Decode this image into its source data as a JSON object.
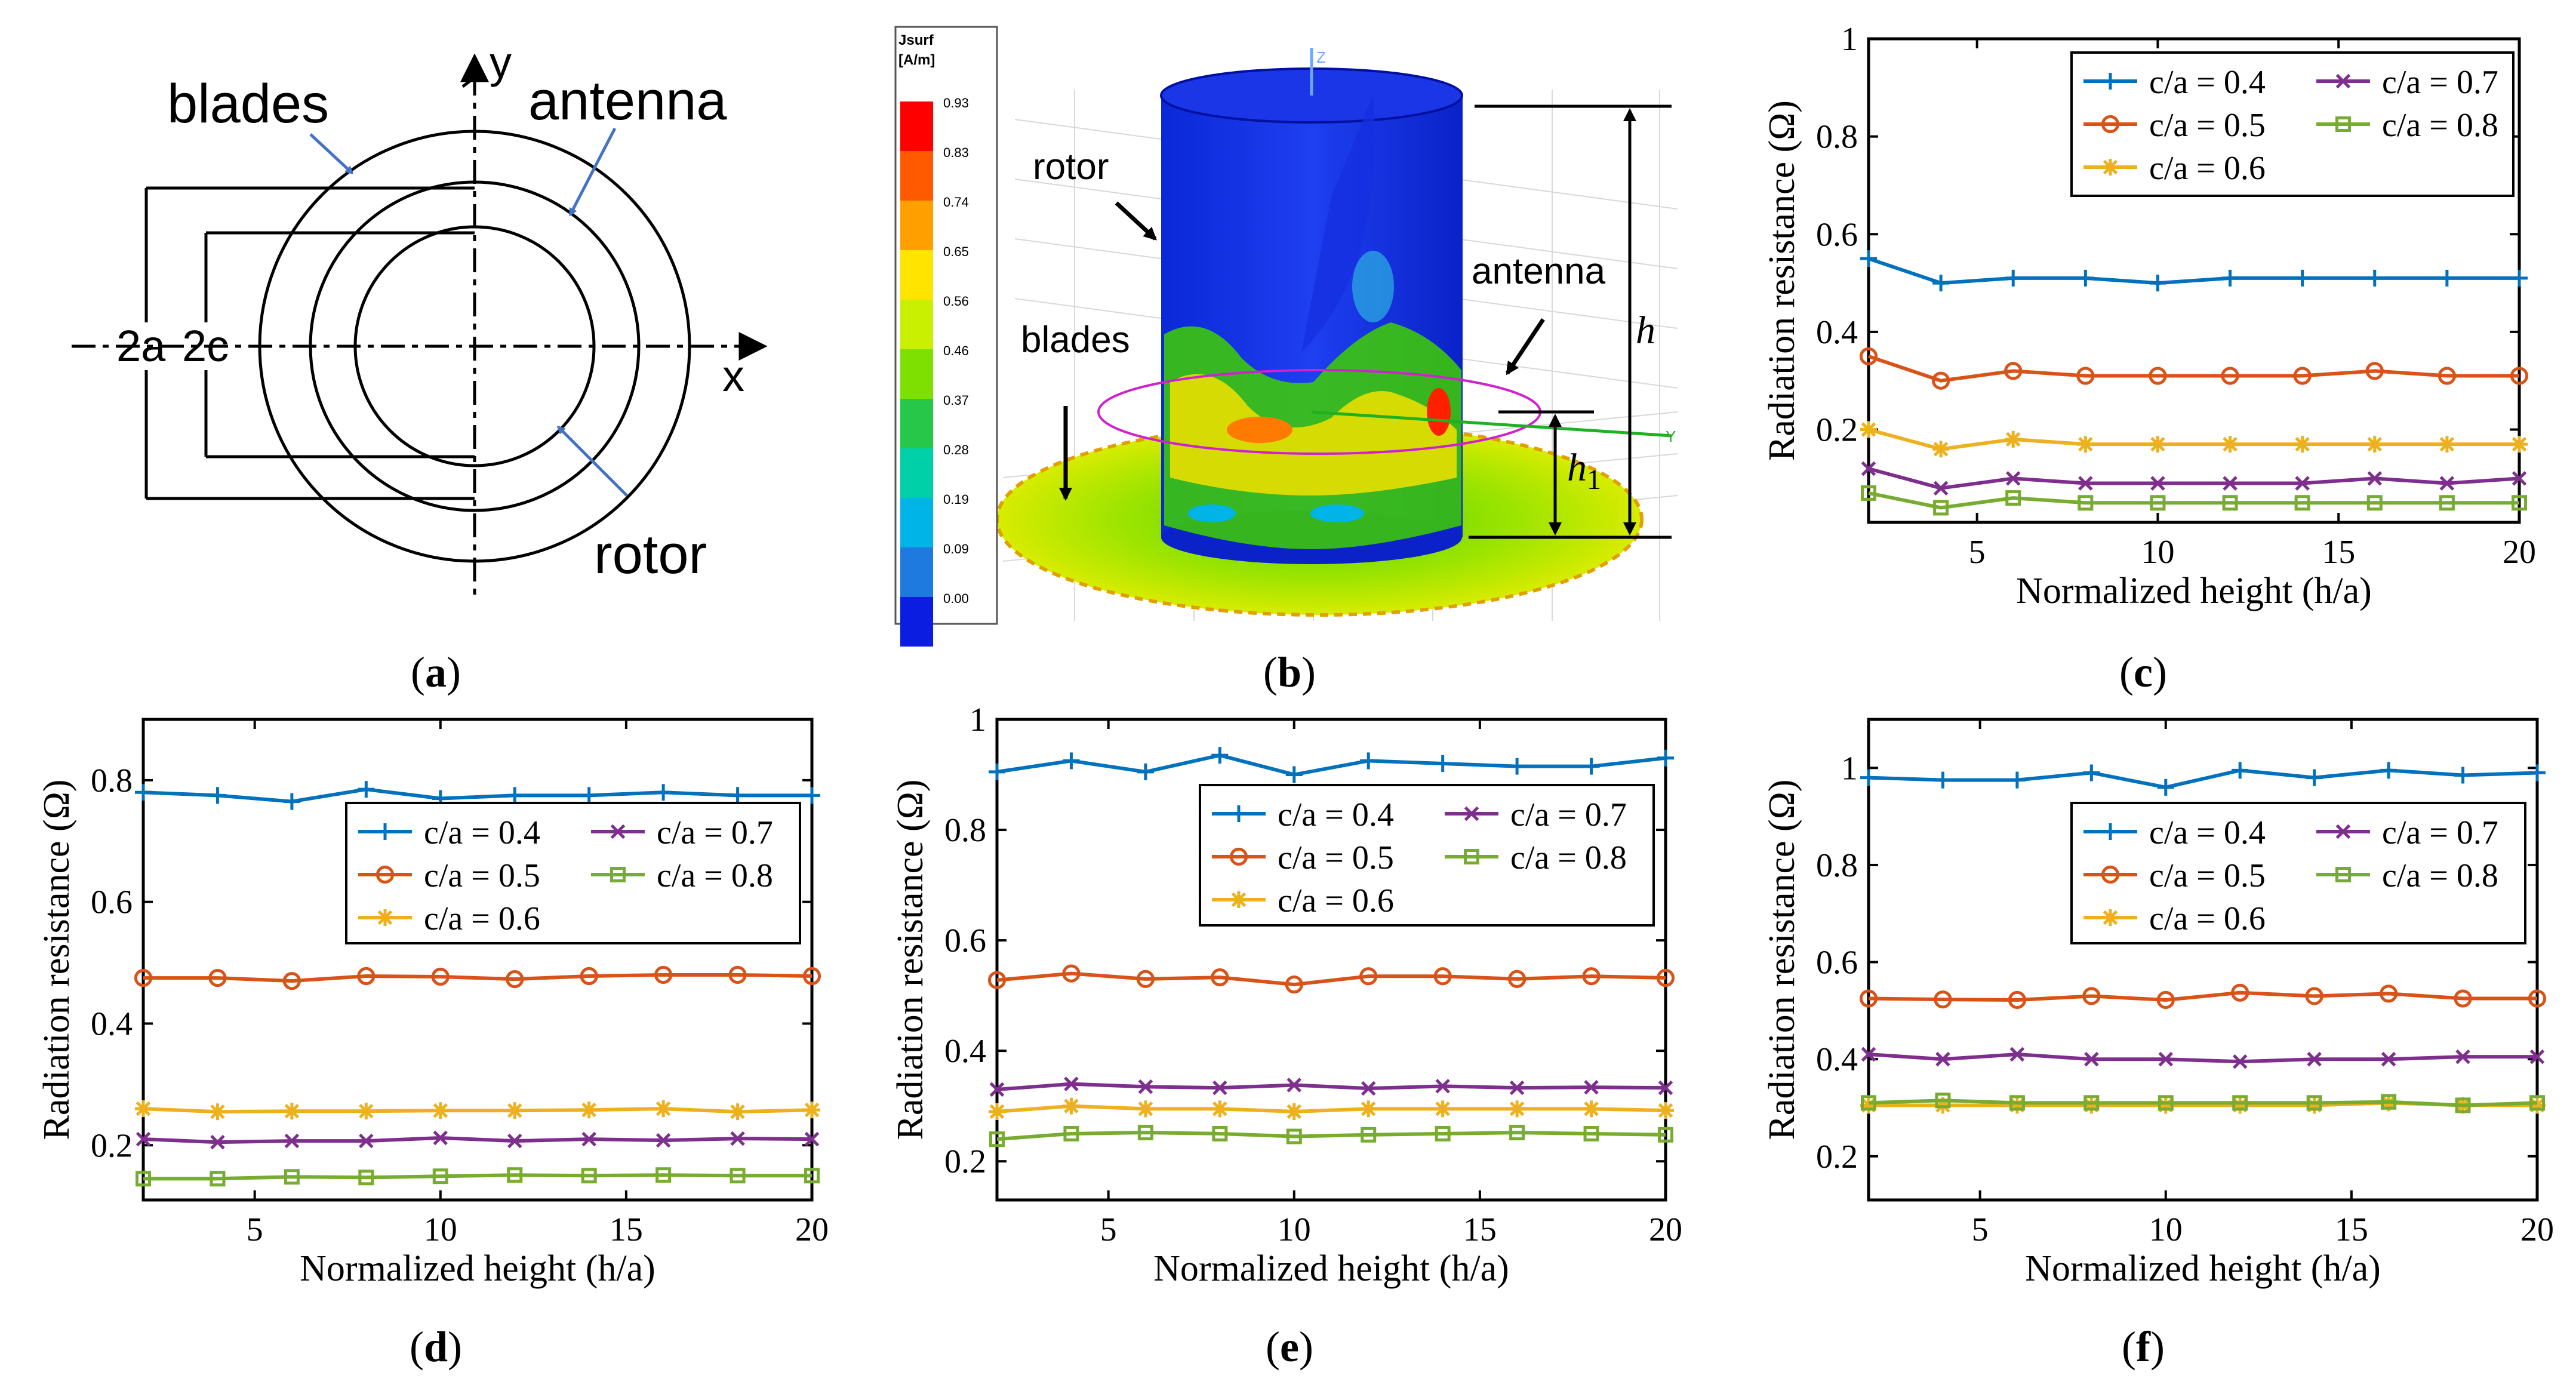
{
  "panel_labels": {
    "a": {
      "open": "(",
      "letter": "a",
      "close": ")"
    },
    "b": {
      "open": "(",
      "letter": "b",
      "close": ")"
    },
    "c": {
      "open": "(",
      "letter": "c",
      "close": ")"
    },
    "d": {
      "open": "(",
      "letter": "d",
      "close": ")"
    },
    "e": {
      "open": "(",
      "letter": "e",
      "close": ")"
    },
    "f": {
      "open": "(",
      "letter": "f",
      "close": ")"
    }
  },
  "diagram_a": {
    "blades": "blades",
    "antenna": "antenna",
    "rotor": "rotor",
    "dim_2a": "2a",
    "dim_2c": "2c",
    "axis_x": "x",
    "axis_y": "y"
  },
  "diagram_b": {
    "legend_title": "Jsurf",
    "legend_unit": "[A/m]",
    "legend_values": [
      "0.93",
      "0.83",
      "0.74",
      "0.65",
      "0.56",
      "0.46",
      "0.37",
      "0.28",
      "0.19",
      "0.09",
      "0.00"
    ],
    "legend_colors": [
      "#ff0000",
      "#ff5a00",
      "#ff9f00",
      "#ffe400",
      "#c8f000",
      "#7ee000",
      "#27c84a",
      "#00d0a8",
      "#00b4e8",
      "#1f7ae0",
      "#0a1de0"
    ],
    "label_rotor": "rotor",
    "label_antenna": "antenna",
    "label_blades": "blades",
    "label_h": "h",
    "label_h1_base": "h",
    "label_h1_sub": "1",
    "axis_z": "Z",
    "axis_y": "Y"
  },
  "colors": {
    "c04": "#0072BD",
    "c05": "#D95319",
    "c06": "#EDB120",
    "c07": "#7E2F8E",
    "c08": "#77AC30"
  },
  "chart_data": [
    {
      "id": "c",
      "type": "line",
      "xlabel": "Normalized height (h/a)",
      "ylabel": "Radiation resistance (Ω)",
      "x": [
        2,
        4,
        6,
        8,
        10,
        12,
        14,
        16,
        18,
        20
      ],
      "xlim": [
        2,
        20
      ],
      "ylim": [
        0.01,
        1
      ],
      "xticks": [
        5,
        10,
        15,
        20
      ],
      "yticks": [
        0.2,
        0.4,
        0.6,
        0.8,
        1
      ],
      "ytick_labels": [
        "0.2",
        "0.4",
        "0.6",
        "0.8",
        "1"
      ],
      "legend_position": "top-right",
      "series": [
        {
          "name": "c/a = 0.4",
          "marker": "plus",
          "values": [
            0.55,
            0.5,
            0.51,
            0.51,
            0.5,
            0.51,
            0.51,
            0.51,
            0.51,
            0.51
          ]
        },
        {
          "name": "c/a = 0.5",
          "marker": "circle",
          "values": [
            0.35,
            0.3,
            0.32,
            0.31,
            0.31,
            0.31,
            0.31,
            0.32,
            0.31,
            0.31
          ]
        },
        {
          "name": "c/a = 0.6",
          "marker": "star",
          "values": [
            0.2,
            0.16,
            0.18,
            0.17,
            0.17,
            0.17,
            0.17,
            0.17,
            0.17,
            0.17
          ]
        },
        {
          "name": "c/a = 0.7",
          "marker": "cross",
          "values": [
            0.12,
            0.08,
            0.1,
            0.09,
            0.09,
            0.09,
            0.09,
            0.1,
            0.09,
            0.1
          ]
        },
        {
          "name": "c/a = 0.8",
          "marker": "square",
          "values": [
            0.07,
            0.04,
            0.06,
            0.05,
            0.05,
            0.05,
            0.05,
            0.05,
            0.05,
            0.05
          ]
        }
      ]
    },
    {
      "id": "d",
      "type": "line",
      "xlabel": "Normalized height (h/a)",
      "ylabel": "Radiation resistance (Ω)",
      "x": [
        2,
        4,
        6,
        8,
        10,
        12,
        14,
        16,
        18,
        20
      ],
      "xlim": [
        2,
        20
      ],
      "ylim": [
        0.11,
        0.9
      ],
      "xticks": [
        5,
        10,
        15,
        20
      ],
      "yticks": [
        0.2,
        0.4,
        0.6,
        0.8
      ],
      "ytick_labels": [
        "0.2",
        "0.4",
        "0.6",
        "0.8"
      ],
      "legend_position": "center-right",
      "series": [
        {
          "name": "c/a = 0.4",
          "marker": "plus",
          "values": [
            0.78,
            0.775,
            0.765,
            0.785,
            0.77,
            0.775,
            0.775,
            0.78,
            0.775,
            0.775
          ]
        },
        {
          "name": "c/a = 0.5",
          "marker": "circle",
          "values": [
            0.475,
            0.475,
            0.47,
            0.478,
            0.477,
            0.473,
            0.478,
            0.48,
            0.48,
            0.478
          ]
        },
        {
          "name": "c/a = 0.6",
          "marker": "star",
          "values": [
            0.26,
            0.255,
            0.256,
            0.256,
            0.257,
            0.257,
            0.258,
            0.26,
            0.255,
            0.258
          ]
        },
        {
          "name": "c/a = 0.7",
          "marker": "cross",
          "values": [
            0.21,
            0.205,
            0.207,
            0.207,
            0.212,
            0.207,
            0.21,
            0.208,
            0.211,
            0.21
          ]
        },
        {
          "name": "c/a = 0.8",
          "marker": "square",
          "values": [
            0.145,
            0.145,
            0.148,
            0.147,
            0.149,
            0.151,
            0.15,
            0.151,
            0.15,
            0.15
          ]
        }
      ]
    },
    {
      "id": "e",
      "type": "line",
      "xlabel": "Normalized height (h/a)",
      "ylabel": "Radiation resistance (Ω)",
      "x": [
        2,
        4,
        6,
        8,
        10,
        12,
        14,
        16,
        18,
        20
      ],
      "xlim": [
        2,
        20
      ],
      "ylim": [
        0.13,
        1
      ],
      "xticks": [
        5,
        10,
        15,
        20
      ],
      "yticks": [
        0.2,
        0.4,
        0.6,
        0.8,
        1
      ],
      "ytick_labels": [
        "0.2",
        "0.4",
        "0.6",
        "0.8",
        "1"
      ],
      "legend_position": "top-right",
      "series": [
        {
          "name": "c/a = 0.4",
          "marker": "plus",
          "values": [
            0.905,
            0.925,
            0.905,
            0.935,
            0.9,
            0.925,
            0.92,
            0.915,
            0.915,
            0.93
          ]
        },
        {
          "name": "c/a = 0.5",
          "marker": "circle",
          "values": [
            0.528,
            0.54,
            0.53,
            0.533,
            0.52,
            0.535,
            0.535,
            0.53,
            0.535,
            0.532
          ]
        },
        {
          "name": "c/a = 0.6",
          "marker": "star",
          "values": [
            0.29,
            0.3,
            0.295,
            0.295,
            0.29,
            0.295,
            0.295,
            0.295,
            0.295,
            0.292
          ]
        },
        {
          "name": "c/a = 0.7",
          "marker": "cross",
          "values": [
            0.33,
            0.34,
            0.335,
            0.333,
            0.338,
            0.332,
            0.336,
            0.333,
            0.334,
            0.333
          ]
        },
        {
          "name": "c/a = 0.8",
          "marker": "square",
          "values": [
            0.24,
            0.25,
            0.252,
            0.25,
            0.245,
            0.248,
            0.25,
            0.252,
            0.25,
            0.248
          ]
        }
      ]
    },
    {
      "id": "f",
      "type": "line",
      "xlabel": "Normalized height (h/a)",
      "ylabel": "Radiation resistance (Ω)",
      "x": [
        2,
        4,
        6,
        8,
        10,
        12,
        14,
        16,
        18,
        20
      ],
      "xlim": [
        2,
        20
      ],
      "ylim": [
        0.11,
        1.1
      ],
      "xticks": [
        5,
        10,
        15,
        20
      ],
      "yticks": [
        0.2,
        0.4,
        0.6,
        0.8,
        1
      ],
      "ytick_labels": [
        "0.2",
        "0.4",
        "0.6",
        "0.8",
        "1"
      ],
      "legend_position": "top-right",
      "series": [
        {
          "name": "c/a = 0.4",
          "marker": "plus",
          "values": [
            0.98,
            0.975,
            0.975,
            0.99,
            0.96,
            0.995,
            0.98,
            0.995,
            0.985,
            0.99
          ]
        },
        {
          "name": "c/a = 0.5",
          "marker": "circle",
          "values": [
            0.525,
            0.523,
            0.522,
            0.53,
            0.522,
            0.537,
            0.53,
            0.535,
            0.525,
            0.525
          ]
        },
        {
          "name": "c/a = 0.6",
          "marker": "star",
          "values": [
            0.305,
            0.305,
            0.305,
            0.305,
            0.305,
            0.305,
            0.305,
            0.31,
            0.305,
            0.305
          ]
        },
        {
          "name": "c/a = 0.7",
          "marker": "cross",
          "values": [
            0.41,
            0.4,
            0.41,
            0.4,
            0.4,
            0.395,
            0.4,
            0.4,
            0.405,
            0.405
          ]
        },
        {
          "name": "c/a = 0.8",
          "marker": "square",
          "values": [
            0.31,
            0.315,
            0.31,
            0.31,
            0.31,
            0.31,
            0.31,
            0.312,
            0.305,
            0.31
          ]
        }
      ]
    }
  ]
}
